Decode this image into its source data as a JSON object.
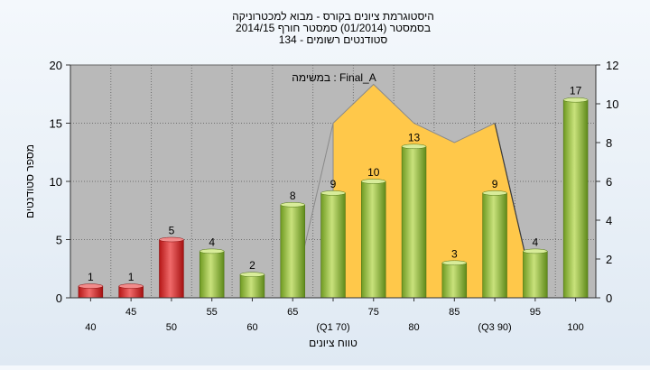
{
  "chart_data": {
    "type": "bar",
    "title_lines": [
      "היסטוגרמת ציונים בקורס - מבוא למכטרוניקה",
      "בסמסטר  (01/2014)  סמסטר חורף 2014/15",
      "סטודנטים רשומים - 134"
    ],
    "xlabel": "טווח ציונים",
    "ylabel": "מספר סטודנטים",
    "ylim": [
      0,
      20
    ],
    "yticks": [
      "0",
      "5",
      "10",
      "15",
      "20"
    ],
    "y2lim": [
      0,
      12
    ],
    "y2ticks": [
      "0",
      "2",
      "4",
      "6",
      "8",
      "10",
      "12"
    ],
    "grid": true,
    "categories": [
      "40",
      "45",
      "50",
      "55",
      "60",
      "65",
      "(Q1 70)",
      "75",
      "80",
      "85",
      "(Q3 90)",
      "95",
      "100"
    ],
    "values": [
      1,
      1,
      5,
      4,
      2,
      8,
      9,
      10,
      13,
      3,
      9,
      4,
      17
    ],
    "bar_colors": [
      "#d42a2a",
      "#d42a2a",
      "#d42a2a",
      "#8fb83a",
      "#8fb83a",
      "#8fb83a",
      "#8fb83a",
      "#8fb83a",
      "#8fb83a",
      "#8fb83a",
      "#8fb83a",
      "#8fb83a",
      "#8fb83a"
    ],
    "overlay": {
      "label": "במשימה : Final_A",
      "color": "#ffc84a",
      "points": [
        {
          "category_index": 6,
          "value": 9
        },
        {
          "category_index": 7,
          "value": 11
        },
        {
          "category_index": 8,
          "value": 9
        },
        {
          "category_index": 9,
          "value": 8
        },
        {
          "category_index": 10,
          "value": 9
        }
      ],
      "end_category_index": 11
    }
  }
}
